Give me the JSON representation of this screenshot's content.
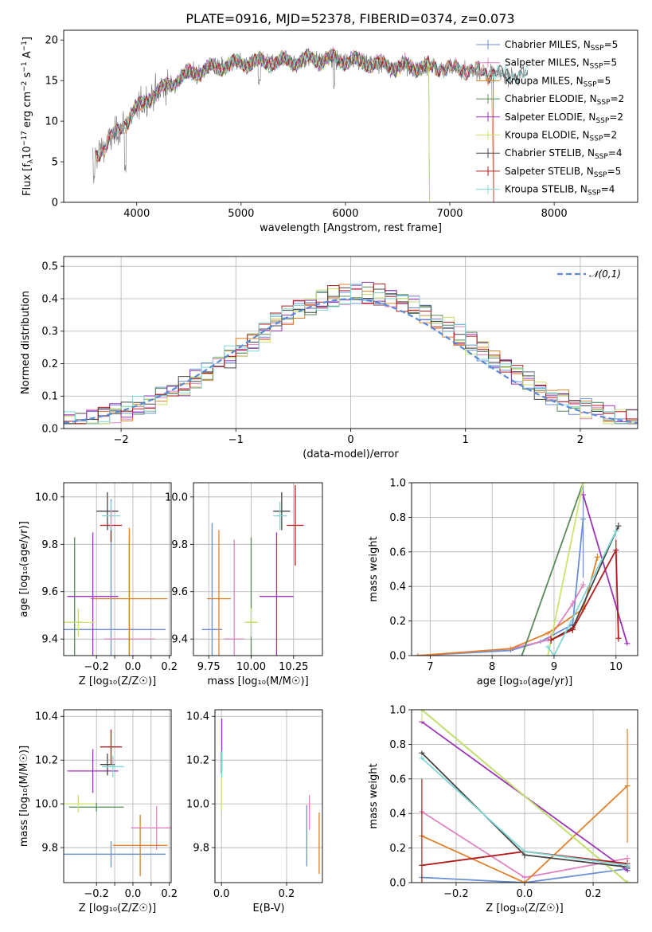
{
  "title": "PLATE=0916, MJD=52378, FIBERID=0374, z=0.073",
  "colors": {
    "chabrier_miles": "#6a8fd8",
    "salpeter_miles": "#df84c2",
    "kroupa_miles": "#e0802a",
    "chabrier_elodie": "#5a8a5a",
    "salpeter_elodie": "#9b34b8",
    "kroupa_elodie": "#c8e46e",
    "chabrier_stelib": "#454545",
    "salpeter_stelib": "#b41c1c",
    "kroupa_stelib": "#7fd6d6",
    "data": "#808080",
    "normal": "#5b8bd6",
    "grid": "#b0b0b0"
  },
  "legend_spectrum": [
    {
      "pre": "Chabrier MILES, N",
      "sub": "SSP",
      "post": "=5",
      "color": "#6a8fd8"
    },
    {
      "pre": "Salpeter MILES, N",
      "sub": "SSP",
      "post": "=5",
      "color": "#df84c2"
    },
    {
      "pre": "Kroupa MILES, N",
      "sub": "SSP",
      "post": "=5",
      "color": "#e0802a"
    },
    {
      "pre": "Chabrier ELODIE, N",
      "sub": "SSP",
      "post": "=2",
      "color": "#5a8a5a"
    },
    {
      "pre": "Salpeter ELODIE, N",
      "sub": "SSP",
      "post": "=2",
      "color": "#9b34b8"
    },
    {
      "pre": "Kroupa ELODIE, N",
      "sub": "SSP",
      "post": "=2",
      "color": "#c8e46e"
    },
    {
      "pre": "Chabrier STELIB, N",
      "sub": "SSP",
      "post": "=4",
      "color": "#454545"
    },
    {
      "pre": "Salpeter STELIB, N",
      "sub": "SSP",
      "post": "=5",
      "color": "#b41c1c"
    },
    {
      "pre": "Kroupa STELIB, N",
      "sub": "SSP",
      "post": "=4",
      "color": "#7fd6d6"
    }
  ],
  "chart_data": [
    {
      "type": "line",
      "id": "spectrum",
      "xlabel": "wavelength [Angstrom, rest frame]",
      "ylabel_parts": {
        "pre": "Flux [f",
        "sub1": "λ",
        "mid": "10",
        "sup1": "−17",
        "mid2": " erg cm",
        "sup2": "−2",
        "mid3": " s",
        "sup3": "−1",
        "mid4": " A",
        "sup4": "−1",
        "post": "]"
      },
      "xlim": [
        3300,
        8800
      ],
      "ylim": [
        0,
        21.2
      ],
      "xticks": [
        4000,
        5000,
        6000,
        7000,
        8000
      ],
      "yticks": [
        0,
        5,
        10,
        15,
        20
      ],
      "continuum": {
        "x": [
          3580,
          3700,
          3800,
          3900,
          4000,
          4100,
          4200,
          4300,
          4500,
          4700,
          4900,
          5100,
          5300,
          5500,
          5700,
          5900,
          6100,
          6300,
          6500,
          6700,
          6900,
          7100,
          7300,
          7500,
          7700
        ],
        "y": [
          5.5,
          7.0,
          8.5,
          10.0,
          11.5,
          12.8,
          13.5,
          14.5,
          15.8,
          16.5,
          17.0,
          17.3,
          17.3,
          17.4,
          17.6,
          17.6,
          17.4,
          17.0,
          16.7,
          16.7,
          16.6,
          16.4,
          16.1,
          15.8,
          15.6
        ]
      }
    },
    {
      "type": "bar",
      "id": "residuals",
      "xlabel": "(data-model)/error",
      "ylabel": "Normed distribution",
      "xlim": [
        -2.5,
        2.5
      ],
      "ylim": [
        0,
        0.53
      ],
      "xticks": [
        -2,
        -1,
        0,
        1,
        2
      ],
      "xtick_labels": [
        "−2",
        "−1",
        "0",
        "1",
        "2"
      ],
      "yticks": [
        0.0,
        0.1,
        0.2,
        0.3,
        0.4,
        0.5
      ],
      "ytick_labels": [
        "0.0",
        "0.1",
        "0.2",
        "0.3",
        "0.4",
        "0.5"
      ],
      "bin_width": 0.1,
      "normal_curve": {
        "label": "𝒩(0,1)",
        "mu": 0,
        "sigma": 1
      }
    },
    {
      "type": "scatter",
      "id": "age_vs_Z",
      "xlabel": "Z [log₁₀(Z/Z☉)]",
      "ylabel": "age  [log₁₀(age/yr)]",
      "xlim": [
        -0.38,
        0.21
      ],
      "ylim": [
        9.33,
        10.06
      ],
      "xticks": [
        -0.2,
        -0.1,
        0.0,
        0.1,
        0.2
      ],
      "xtick_labels": [
        "−0.2",
        "",
        "0.0",
        "",
        "0.2"
      ],
      "yticks": [
        9.4,
        9.6,
        9.8,
        10.0
      ],
      "ytick_labels": [
        "9.4",
        "9.6",
        "9.8",
        "10.0"
      ],
      "points": [
        {
          "model": "chabrier_miles",
          "x": -0.12,
          "y": 9.44,
          "xerr": 0.3,
          "yerr": 0.55
        },
        {
          "model": "salpeter_miles",
          "x": -0.02,
          "y": 9.4,
          "xerr": 0.14,
          "yerr": 0.42
        },
        {
          "model": "kroupa_miles",
          "x": -0.02,
          "y": 9.57,
          "xerr": 0.21,
          "yerr": 0.3
        },
        {
          "model": "chabrier_elodie",
          "x": -0.32,
          "y": 9.47,
          "xerr": 0.04,
          "yerr": 0.36
        },
        {
          "model": "salpeter_elodie",
          "x": -0.22,
          "y": 9.58,
          "xerr": 0.14,
          "yerr": 0.27
        },
        {
          "model": "kroupa_elodie",
          "x": -0.3,
          "y": 9.47,
          "xerr": 0.09,
          "yerr": 0.06
        },
        {
          "model": "chabrier_stelib",
          "x": -0.14,
          "y": 9.94,
          "xerr": 0.06,
          "yerr": 0.08
        },
        {
          "model": "salpeter_stelib",
          "x": -0.12,
          "y": 9.88,
          "xerr": 0.06,
          "yerr": 0.07
        },
        {
          "model": "kroupa_stelib",
          "x": -0.12,
          "y": 9.92,
          "xerr": 0.05,
          "yerr": 0.06
        }
      ]
    },
    {
      "type": "scatter",
      "id": "age_vs_mass",
      "xlabel": "mass [log₁₀(M/M☉)]",
      "ylabel": "",
      "xlim": [
        9.66,
        10.42
      ],
      "ylim": [
        9.33,
        10.06
      ],
      "xticks": [
        9.75,
        10.0,
        10.25
      ],
      "xtick_labels": [
        "9.75",
        "10.00",
        "10.25"
      ],
      "yticks": [
        9.4,
        9.6,
        9.8,
        10.0
      ],
      "ytick_labels": [
        "9.4",
        "9.6",
        "9.8",
        "10.0"
      ],
      "points": [
        {
          "model": "chabrier_miles",
          "x": 9.77,
          "y": 9.44,
          "xerr": 0.06,
          "yerr": 0.45
        },
        {
          "model": "salpeter_miles",
          "x": 9.9,
          "y": 9.4,
          "xerr": 0.06,
          "yerr": 0.42
        },
        {
          "model": "kroupa_miles",
          "x": 9.81,
          "y": 9.57,
          "xerr": 0.07,
          "yerr": 0.29
        },
        {
          "model": "chabrier_elodie",
          "x": 10.0,
          "y": 9.47,
          "xerr": 0.03,
          "yerr": 0.36
        },
        {
          "model": "salpeter_elodie",
          "x": 10.15,
          "y": 9.58,
          "xerr": 0.1,
          "yerr": 0.27
        },
        {
          "model": "kroupa_elodie",
          "x": 10.0,
          "y": 9.47,
          "xerr": 0.04,
          "yerr": 0.06
        },
        {
          "model": "chabrier_stelib",
          "x": 10.18,
          "y": 9.94,
          "xerr": 0.05,
          "yerr": 0.08
        },
        {
          "model": "salpeter_stelib",
          "x": 10.26,
          "y": 9.88,
          "xerr": 0.05,
          "yerr": 0.17
        },
        {
          "model": "kroupa_stelib",
          "x": 10.17,
          "y": 9.92,
          "xerr": 0.04,
          "yerr": 0.06
        }
      ]
    },
    {
      "type": "line",
      "id": "mass_weight_vs_age",
      "xlabel": "age  [log₁₀(age/yr)]",
      "ylabel": "mass weight",
      "xlim": [
        6.7,
        10.35
      ],
      "ylim": [
        0,
        1.0
      ],
      "xticks": [
        7,
        8,
        9,
        10
      ],
      "xtick_labels": [
        "7",
        "8",
        "9",
        "10"
      ],
      "yticks": [
        0.0,
        0.2,
        0.4,
        0.6,
        0.8,
        1.0
      ],
      "ytick_labels": [
        "0.0",
        "0.2",
        "0.4",
        "0.6",
        "0.8",
        "1.0"
      ],
      "series": [
        {
          "model": "chabrier_miles",
          "x": [
            6.8,
            8.3,
            8.78,
            9.3,
            9.47
          ],
          "y": [
            0.0,
            0.03,
            0.08,
            0.18,
            0.79
          ],
          "err": [
            0,
            0,
            0.01,
            0.03,
            0.34
          ]
        },
        {
          "model": "salpeter_miles",
          "x": [
            6.8,
            8.3,
            8.9,
            9.3,
            9.47
          ],
          "y": [
            0.0,
            0.04,
            0.09,
            0.3,
            0.41
          ],
          "err": [
            0,
            0,
            0.01,
            0.02,
            0.02
          ]
        },
        {
          "model": "kroupa_miles",
          "x": [
            6.8,
            8.3,
            8.9,
            9.47,
            9.7
          ],
          "y": [
            0.0,
            0.04,
            0.13,
            0.27,
            0.57
          ],
          "err": [
            0,
            0,
            0.01,
            0.02,
            0.02
          ]
        },
        {
          "model": "chabrier_elodie",
          "x": [
            8.48,
            9.47
          ],
          "y": [
            0.0,
            1.0
          ],
          "err": [
            0,
            0
          ]
        },
        {
          "model": "salpeter_elodie",
          "x": [
            9.47,
            10.18
          ],
          "y": [
            0.93,
            0.07
          ],
          "err": [
            0.02,
            0.01
          ]
        },
        {
          "model": "kroupa_elodie",
          "x": [
            8.9,
            9.47
          ],
          "y": [
            0.0,
            1.0
          ],
          "err": [
            0,
            0
          ]
        },
        {
          "model": "chabrier_stelib",
          "x": [
            8.95,
            9.3,
            10.04
          ],
          "y": [
            0.09,
            0.16,
            0.75
          ],
          "err": [
            0.02,
            0.02,
            0.02
          ]
        },
        {
          "model": "salpeter_stelib",
          "x": [
            8.95,
            9.3,
            10.0,
            10.04
          ],
          "y": [
            0.09,
            0.15,
            0.61,
            0.1
          ],
          "err": [
            0.02,
            0.02,
            0.06,
            0.02
          ]
        },
        {
          "model": "kroupa_stelib",
          "x": [
            8.9,
            9.0,
            10.0
          ],
          "y": [
            0.05,
            0.0,
            0.72
          ],
          "err": [
            0.01,
            0,
            0.02
          ]
        }
      ]
    },
    {
      "type": "scatter",
      "id": "mass_vs_Z",
      "xlabel": "Z [log₁₀(Z/Z☉)]",
      "ylabel": "mass [log₁₀(M/M☉)]",
      "xlim": [
        -0.38,
        0.21
      ],
      "ylim": [
        9.64,
        10.43
      ],
      "xticks": [
        -0.2,
        -0.1,
        0.0,
        0.1,
        0.2
      ],
      "xtick_labels": [
        "−0.2",
        "",
        "0.0",
        "",
        "0.2"
      ],
      "yticks": [
        9.8,
        10.0,
        10.2,
        10.4
      ],
      "ytick_labels": [
        "9.8",
        "10.0",
        "10.2",
        "10.4"
      ],
      "points": [
        {
          "model": "chabrier_miles",
          "x": -0.12,
          "y": 9.77,
          "xerr": 0.3,
          "yerr": 0.06
        },
        {
          "model": "salpeter_miles",
          "x": 0.13,
          "y": 9.89,
          "xerr": 0.14,
          "yerr": 0.1
        },
        {
          "model": "kroupa_miles",
          "x": 0.04,
          "y": 9.81,
          "xerr": 0.15,
          "yerr": 0.14
        },
        {
          "model": "chabrier_elodie",
          "x": -0.2,
          "y": 9.985,
          "xerr": 0.15,
          "yerr": 0.02
        },
        {
          "model": "salpeter_elodie",
          "x": -0.22,
          "y": 10.15,
          "xerr": 0.14,
          "yerr": 0.1
        },
        {
          "model": "kroupa_elodie",
          "x": -0.3,
          "y": 10.0,
          "xerr": 0.09,
          "yerr": 0.04
        },
        {
          "model": "chabrier_stelib",
          "x": -0.14,
          "y": 10.18,
          "xerr": 0.04,
          "yerr": 0.05
        },
        {
          "model": "salpeter_stelib",
          "x": -0.12,
          "y": 10.26,
          "xerr": 0.06,
          "yerr": 0.08
        },
        {
          "model": "kroupa_stelib",
          "x": -0.11,
          "y": 10.17,
          "xerr": 0.06,
          "yerr": 0.05
        }
      ]
    },
    {
      "type": "scatter",
      "id": "mass_vs_ebv",
      "xlabel": "E(B-V)",
      "ylabel": "",
      "xlim": [
        -0.02,
        0.31
      ],
      "ylim": [
        9.64,
        10.43
      ],
      "xticks": [
        0.0,
        0.2
      ],
      "xtick_labels": [
        "0.0",
        "0.2"
      ],
      "yticks": [
        9.8,
        10.0,
        10.2,
        10.4
      ],
      "ytick_labels": [
        "9.8",
        "10.0",
        "10.2",
        "10.4"
      ],
      "points": [
        {
          "model": "chabrier_miles",
          "x": 0.262,
          "y": 9.855,
          "xerr": 0,
          "yerr": 0.14
        },
        {
          "model": "salpeter_miles",
          "x": 0.27,
          "y": 9.96,
          "xerr": 0,
          "yerr": 0.08
        },
        {
          "model": "kroupa_miles",
          "x": 0.3,
          "y": 9.82,
          "xerr": 0,
          "yerr": 0.14
        },
        {
          "model": "salpeter_elodie",
          "x": 0.001,
          "y": 10.27,
          "xerr": 0,
          "yerr": 0.12
        },
        {
          "model": "kroupa_elodie",
          "x": 0.0,
          "y": 10.05,
          "xerr": 0,
          "yerr": 0.08
        },
        {
          "model": "chabrier_stelib",
          "x": 0.0,
          "y": 10.19,
          "xerr": 0,
          "yerr": 0.05
        },
        {
          "model": "kroupa_stelib",
          "x": 0.001,
          "y": 10.18,
          "xerr": 0,
          "yerr": 0.06
        }
      ]
    },
    {
      "type": "line",
      "id": "mass_weight_vs_Z",
      "xlabel": "Z [log₁₀(Z/Z☉)]",
      "ylabel": "mass weight",
      "xlim": [
        -0.33,
        0.33
      ],
      "ylim": [
        0,
        1.0
      ],
      "xticks": [
        -0.2,
        0.0,
        0.2
      ],
      "xtick_labels": [
        "−0.2",
        "0.0",
        "0.2"
      ],
      "yticks": [
        0.0,
        0.2,
        0.4,
        0.6,
        0.8,
        1.0
      ],
      "ytick_labels": [
        "0.0",
        "0.2",
        "0.4",
        "0.6",
        "0.8",
        "1.0"
      ],
      "series": [
        {
          "model": "chabrier_miles",
          "x": [
            -0.3,
            0.0,
            0.3
          ],
          "y": [
            0.03,
            0.0,
            0.08
          ],
          "err": [
            0,
            0,
            0.02
          ]
        },
        {
          "model": "salpeter_miles",
          "x": [
            -0.3,
            0.0,
            0.3
          ],
          "y": [
            0.41,
            0.03,
            0.14
          ],
          "err": [
            0,
            0,
            0.02
          ]
        },
        {
          "model": "kroupa_miles",
          "x": [
            -0.3,
            0.0,
            0.3
          ],
          "y": [
            0.27,
            0.0,
            0.56
          ],
          "err": [
            0,
            0,
            0.33
          ]
        },
        {
          "model": "chabrier_elodie",
          "x": [
            -0.3,
            0.3
          ],
          "y": [
            1.0,
            0.0
          ],
          "err": [
            0,
            0
          ]
        },
        {
          "model": "salpeter_elodie",
          "x": [
            -0.3,
            0.3
          ],
          "y": [
            0.93,
            0.07
          ],
          "err": [
            0,
            0
          ]
        },
        {
          "model": "kroupa_elodie",
          "x": [
            -0.3,
            0.3
          ],
          "y": [
            1.0,
            0.0
          ],
          "err": [
            0.07,
            0
          ]
        },
        {
          "model": "chabrier_stelib",
          "x": [
            -0.3,
            0.0,
            0.3
          ],
          "y": [
            0.75,
            0.16,
            0.09
          ],
          "err": [
            0,
            0.02,
            0.02
          ]
        },
        {
          "model": "salpeter_stelib",
          "x": [
            -0.3,
            0.0,
            0.3
          ],
          "y": [
            0.1,
            0.18,
            0.11
          ],
          "err": [
            0.5,
            0,
            0.02
          ]
        },
        {
          "model": "kroupa_stelib",
          "x": [
            -0.3,
            0.0,
            0.3
          ],
          "y": [
            0.72,
            0.18,
            0.1
          ],
          "err": [
            0,
            0,
            0.02
          ]
        }
      ]
    }
  ]
}
